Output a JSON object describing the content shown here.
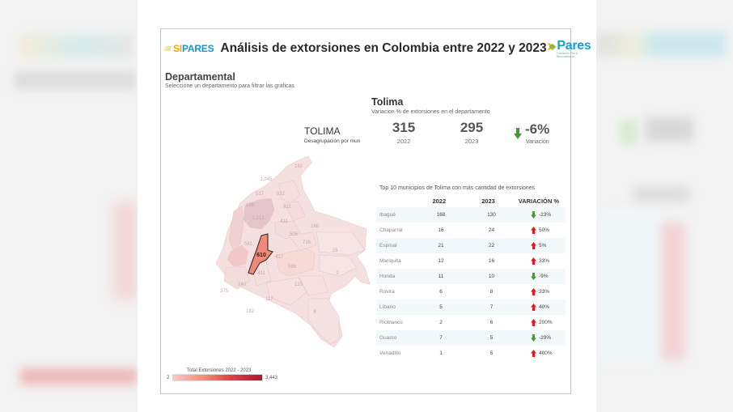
{
  "header": {
    "logo_left_si": "SI",
    "logo_left_pares": "PARES",
    "title": "Análisis de extorsiones en Colombia entre 2022 y 2023",
    "logo_right": "Pares",
    "logo_right_sub": "Fundación Paz & Reconciliación"
  },
  "departamental": {
    "title": "Departamental",
    "subtitle": "Seleccione un departamento para filtrar las graficas"
  },
  "summary": {
    "title": "Tolima",
    "subtitle": "Variacion % de extorsiones en el departamento",
    "department": "TOLIMA",
    "department_sub": "Desagrupación por mun",
    "value_2022": "315",
    "label_2022": "2022",
    "value_2023": "295",
    "label_2023": "2023",
    "variation": "-6%",
    "variation_label": "Variación",
    "variation_direction": "down"
  },
  "map": {
    "selected_label": "610",
    "region_labels": [
      "182",
      "1,045",
      "517",
      "632",
      "198",
      "611",
      "2,213",
      "411",
      "168",
      "505",
      "736",
      "581",
      "610",
      "417",
      "15",
      "586",
      "411",
      "240",
      "2",
      "375",
      "123",
      "117",
      "182",
      "6"
    ]
  },
  "legend": {
    "title": "Total Extorsiones 2022 - 2023",
    "min": "2",
    "max": "3,443"
  },
  "table": {
    "caption": "Top 10 municipios de Tolima con más cantidad de extorsiones",
    "headers": [
      "",
      "2022",
      "2023",
      "VARIACIÓN %"
    ],
    "rows": [
      {
        "name": "Ibagué",
        "y2022": "168",
        "y2023": "130",
        "var": "-23%",
        "dir": "down"
      },
      {
        "name": "Chaparral",
        "y2022": "16",
        "y2023": "24",
        "var": "50%",
        "dir": "up"
      },
      {
        "name": "Espinal",
        "y2022": "21",
        "y2023": "22",
        "var": "5%",
        "dir": "up"
      },
      {
        "name": "Mariquita",
        "y2022": "12",
        "y2023": "16",
        "var": "33%",
        "dir": "up"
      },
      {
        "name": "Honda",
        "y2022": "11",
        "y2023": "10",
        "var": "-9%",
        "dir": "down"
      },
      {
        "name": "Rovira",
        "y2022": "6",
        "y2023": "8",
        "var": "33%",
        "dir": "up"
      },
      {
        "name": "Líbano",
        "y2022": "5",
        "y2023": "7",
        "var": "40%",
        "dir": "up"
      },
      {
        "name": "Rioblanco",
        "y2022": "2",
        "y2023": "6",
        "var": "200%",
        "dir": "up"
      },
      {
        "name": "Guamo",
        "y2022": "7",
        "y2023": "5",
        "var": "-29%",
        "dir": "down"
      },
      {
        "name": "Venadillo",
        "y2022": "1",
        "y2023": "5",
        "var": "400%",
        "dir": "up"
      }
    ]
  },
  "colors": {
    "up": "#e31a1c",
    "down": "#4a9a3a",
    "selected_fill": "#f08a78",
    "map_base": "#f4dcdc"
  }
}
